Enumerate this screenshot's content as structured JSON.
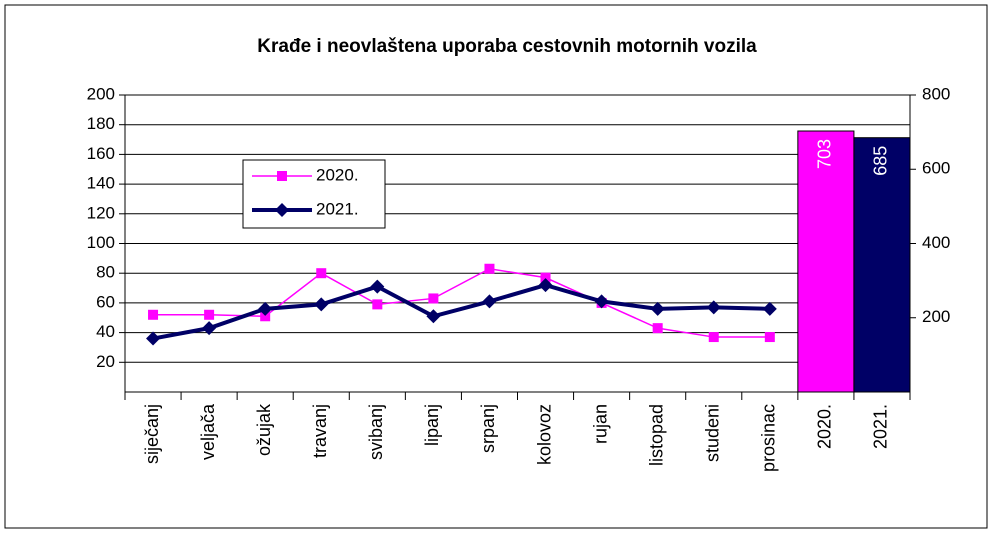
{
  "chart_data": {
    "type": "line",
    "title": "Krađe i neovlaštena uporaba cestovnih motornih vozila",
    "categories": [
      "siječanj",
      "veljača",
      "ožujak",
      "travanj",
      "svibanj",
      "lipanj",
      "srpanj",
      "kolovoz",
      "rujan",
      "listopad",
      "studeni",
      "prosinac",
      "2020.",
      "2021."
    ],
    "series": [
      {
        "name": "2020.",
        "color": "#ff00ff",
        "values": [
          52,
          52,
          51,
          80,
          59,
          63,
          83,
          77,
          60,
          43,
          37,
          37,
          null,
          null
        ]
      },
      {
        "name": "2021.",
        "color": "#000066",
        "values": [
          36,
          43,
          56,
          59,
          71,
          51,
          61,
          72,
          61,
          56,
          57,
          56,
          null,
          null
        ]
      },
      {
        "type": "bar",
        "axis": "y2",
        "colors": [
          "#ff00ff",
          "#000066"
        ],
        "values": [
          null,
          null,
          null,
          null,
          null,
          null,
          null,
          null,
          null,
          null,
          null,
          null,
          703,
          685
        ]
      }
    ],
    "ylim": [
      0,
      200
    ],
    "yticks": [
      20,
      40,
      60,
      80,
      100,
      120,
      140,
      160,
      180,
      200
    ],
    "y2lim": [
      0,
      800
    ],
    "y2ticks": [
      200,
      400,
      600,
      800
    ],
    "grid": true,
    "legend": "upper left"
  }
}
